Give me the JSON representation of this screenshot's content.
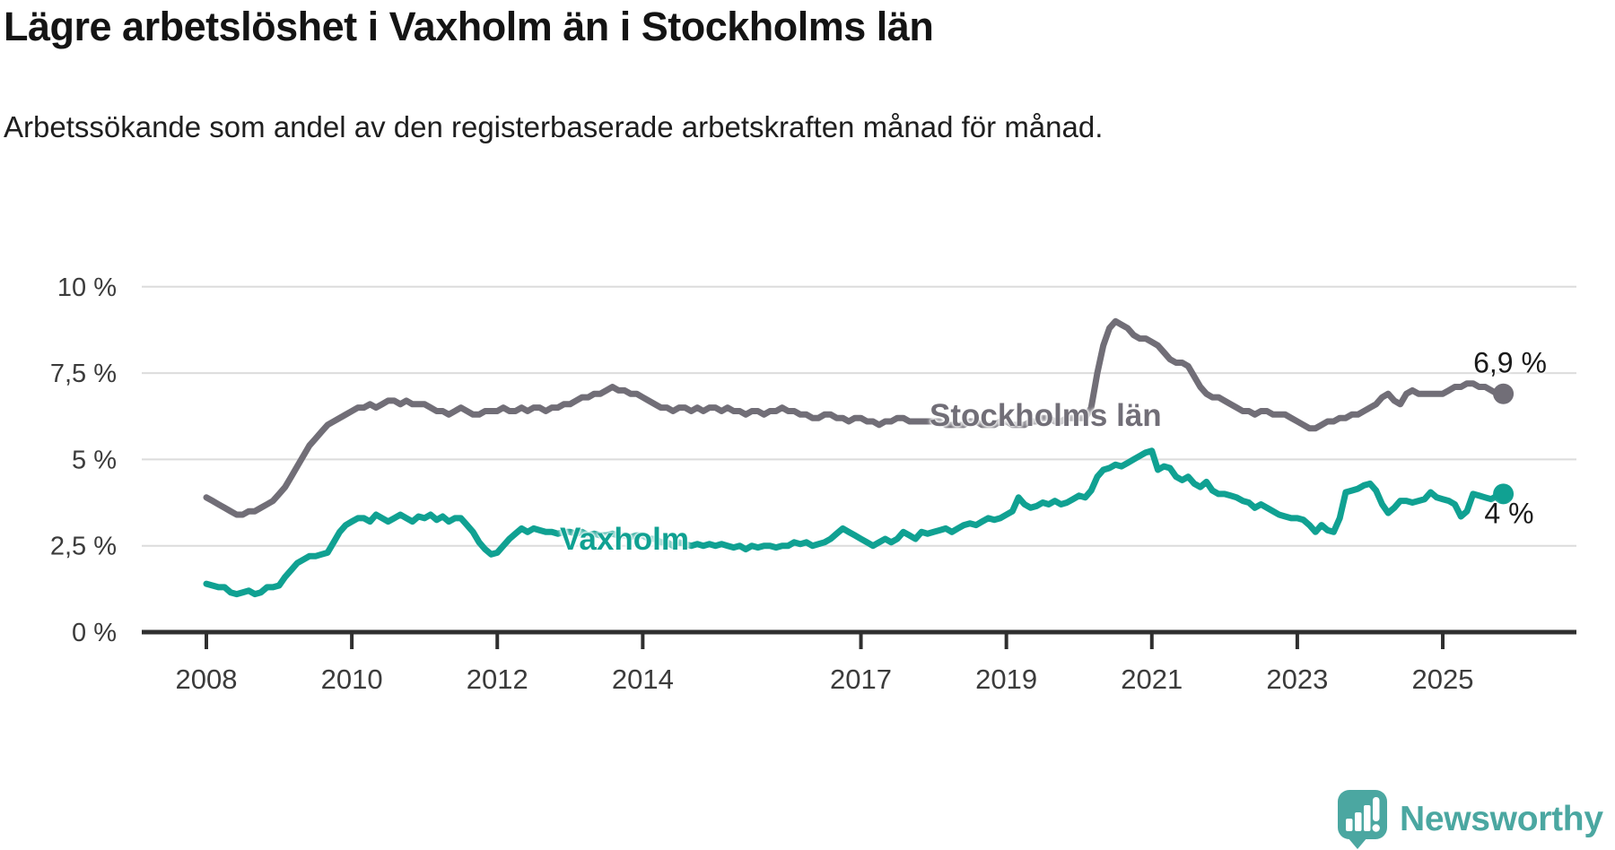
{
  "title": "Lägre arbetslöshet i Vaxholm än i Stockholms län",
  "subtitle": "Arbetssökande som andel av den registerbaserade arbetskraften månad för månad.",
  "branding": {
    "logo_text": "Newsworthy",
    "logo_color": "#4BA7A1",
    "logo_icon": "speech-bubble-bar-chart-exclamation"
  },
  "colors": {
    "grid": "#dcdcdc",
    "axis": "#2f2f2f",
    "tick_text": "#3b3b3b"
  },
  "chart_data": {
    "type": "line",
    "title": "Lägre arbetslöshet i Vaxholm än i Stockholms län",
    "subtitle": "Arbetssökande som andel av den registerbaserade arbetskraften månad för månad.",
    "x_unit": "month",
    "x_start": "2008-01",
    "x_end": "2025-11",
    "ylim": [
      0,
      10
    ],
    "grid": true,
    "legend_position": "inline-labels",
    "x_ticks": [
      {
        "year": 2008,
        "label": "2008"
      },
      {
        "year": 2010,
        "label": "2010"
      },
      {
        "year": 2012,
        "label": "2012"
      },
      {
        "year": 2014,
        "label": "2014"
      },
      {
        "year": 2017,
        "label": "2017"
      },
      {
        "year": 2019,
        "label": "2019"
      },
      {
        "year": 2021,
        "label": "2021"
      },
      {
        "year": 2023,
        "label": "2023"
      },
      {
        "year": 2025,
        "label": "2025"
      }
    ],
    "y_ticks": [
      {
        "value": 0,
        "label": "0 %"
      },
      {
        "value": 2.5,
        "label": "2,5 %"
      },
      {
        "value": 5,
        "label": "5 %"
      },
      {
        "value": 7.5,
        "label": "7,5 %"
      },
      {
        "value": 10,
        "label": "10 %"
      }
    ],
    "series": [
      {
        "name": "Stockholms län",
        "color": "#716E77",
        "end_label": "6,9 %",
        "end_value": 6.9,
        "values": [
          3.9,
          3.8,
          3.7,
          3.6,
          3.5,
          3.4,
          3.4,
          3.5,
          3.5,
          3.6,
          3.7,
          3.8,
          4.0,
          4.2,
          4.5,
          4.8,
          5.1,
          5.4,
          5.6,
          5.8,
          6.0,
          6.1,
          6.2,
          6.3,
          6.4,
          6.5,
          6.5,
          6.6,
          6.5,
          6.6,
          6.7,
          6.7,
          6.6,
          6.7,
          6.6,
          6.6,
          6.6,
          6.5,
          6.4,
          6.4,
          6.3,
          6.4,
          6.5,
          6.4,
          6.3,
          6.3,
          6.4,
          6.4,
          6.4,
          6.5,
          6.4,
          6.4,
          6.5,
          6.4,
          6.5,
          6.5,
          6.4,
          6.5,
          6.5,
          6.6,
          6.6,
          6.7,
          6.8,
          6.8,
          6.9,
          6.9,
          7.0,
          7.1,
          7.0,
          7.0,
          6.9,
          6.9,
          6.8,
          6.7,
          6.6,
          6.5,
          6.5,
          6.4,
          6.5,
          6.5,
          6.4,
          6.5,
          6.4,
          6.5,
          6.5,
          6.4,
          6.5,
          6.4,
          6.4,
          6.3,
          6.4,
          6.4,
          6.3,
          6.4,
          6.4,
          6.5,
          6.4,
          6.4,
          6.3,
          6.3,
          6.2,
          6.2,
          6.3,
          6.3,
          6.2,
          6.2,
          6.1,
          6.2,
          6.2,
          6.1,
          6.1,
          6.0,
          6.1,
          6.1,
          6.2,
          6.2,
          6.1,
          6.1,
          6.1,
          6.1,
          6.1,
          6.1,
          6.0,
          6.0,
          6.0,
          6.0,
          6.1,
          6.1,
          6.0,
          6.0,
          6.0,
          6.1,
          6.1,
          6.0,
          6.0,
          6.0,
          6.1,
          6.1,
          6.2,
          6.2,
          6.1,
          6.1,
          6.2,
          6.2,
          6.2,
          6.2,
          6.5,
          7.5,
          8.3,
          8.8,
          9.0,
          8.9,
          8.8,
          8.6,
          8.5,
          8.5,
          8.4,
          8.3,
          8.1,
          7.9,
          7.8,
          7.8,
          7.7,
          7.4,
          7.1,
          6.9,
          6.8,
          6.8,
          6.7,
          6.6,
          6.5,
          6.4,
          6.4,
          6.3,
          6.4,
          6.4,
          6.3,
          6.3,
          6.3,
          6.2,
          6.1,
          6.0,
          5.9,
          5.9,
          6.0,
          6.1,
          6.1,
          6.2,
          6.2,
          6.3,
          6.3,
          6.4,
          6.5,
          6.6,
          6.8,
          6.9,
          6.7,
          6.6,
          6.9,
          7.0,
          6.9,
          6.9,
          6.9,
          6.9,
          6.9,
          7.0,
          7.1,
          7.1,
          7.2,
          7.2,
          7.1,
          7.1,
          7.0,
          6.9,
          6.9
        ]
      },
      {
        "name": "Vaxholm",
        "color": "#10A192",
        "end_label": "4 %",
        "end_value": 4.0,
        "values": [
          1.4,
          1.35,
          1.3,
          1.3,
          1.15,
          1.1,
          1.15,
          1.2,
          1.1,
          1.15,
          1.3,
          1.3,
          1.35,
          1.6,
          1.8,
          2.0,
          2.1,
          2.2,
          2.2,
          2.25,
          2.3,
          2.6,
          2.9,
          3.1,
          3.2,
          3.3,
          3.3,
          3.2,
          3.4,
          3.3,
          3.2,
          3.3,
          3.4,
          3.3,
          3.2,
          3.35,
          3.3,
          3.4,
          3.25,
          3.35,
          3.2,
          3.3,
          3.3,
          3.1,
          2.9,
          2.6,
          2.4,
          2.25,
          2.3,
          2.5,
          2.7,
          2.85,
          3.0,
          2.9,
          3.0,
          2.95,
          2.9,
          2.9,
          2.85,
          2.9,
          2.9,
          2.85,
          2.9,
          2.8,
          2.85,
          2.8,
          2.8,
          2.85,
          2.8,
          2.8,
          2.75,
          2.8,
          2.8,
          2.7,
          2.7,
          2.6,
          2.6,
          2.5,
          2.6,
          2.55,
          2.5,
          2.55,
          2.5,
          2.55,
          2.5,
          2.55,
          2.5,
          2.45,
          2.5,
          2.4,
          2.5,
          2.45,
          2.5,
          2.5,
          2.45,
          2.5,
          2.5,
          2.6,
          2.55,
          2.6,
          2.5,
          2.55,
          2.6,
          2.7,
          2.85,
          3.0,
          2.9,
          2.8,
          2.7,
          2.6,
          2.5,
          2.6,
          2.7,
          2.6,
          2.7,
          2.9,
          2.8,
          2.7,
          2.9,
          2.85,
          2.9,
          2.95,
          3.0,
          2.9,
          3.0,
          3.1,
          3.15,
          3.1,
          3.2,
          3.3,
          3.25,
          3.3,
          3.4,
          3.5,
          3.9,
          3.7,
          3.6,
          3.65,
          3.75,
          3.7,
          3.8,
          3.7,
          3.75,
          3.85,
          3.95,
          3.9,
          4.1,
          4.5,
          4.7,
          4.75,
          4.85,
          4.8,
          4.9,
          5.0,
          5.1,
          5.2,
          5.25,
          4.7,
          4.8,
          4.75,
          4.5,
          4.4,
          4.5,
          4.3,
          4.2,
          4.35,
          4.1,
          4.0,
          4.0,
          3.95,
          3.9,
          3.8,
          3.75,
          3.6,
          3.7,
          3.6,
          3.5,
          3.4,
          3.35,
          3.3,
          3.3,
          3.25,
          3.1,
          2.9,
          3.1,
          2.95,
          2.9,
          3.3,
          4.05,
          4.1,
          4.15,
          4.25,
          4.3,
          4.1,
          3.7,
          3.45,
          3.6,
          3.8,
          3.8,
          3.75,
          3.8,
          3.85,
          4.05,
          3.9,
          3.85,
          3.8,
          3.7,
          3.35,
          3.5,
          4.0,
          3.95,
          3.9,
          3.85,
          3.95,
          4.0
        ]
      }
    ]
  }
}
